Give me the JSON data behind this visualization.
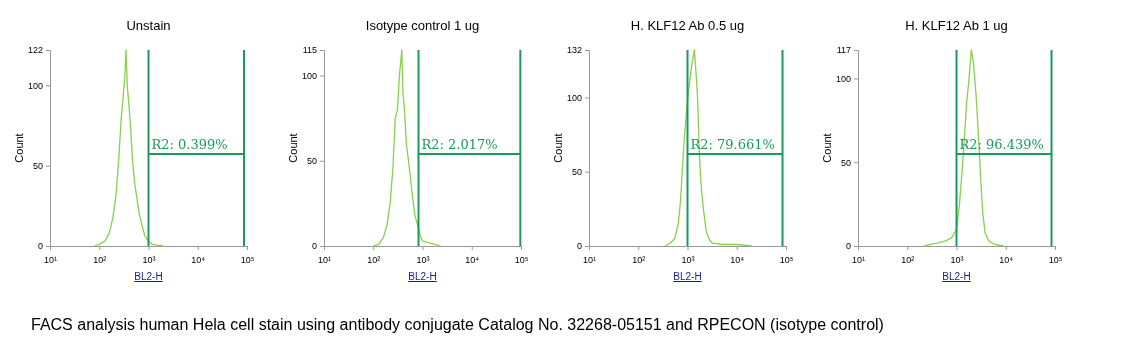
{
  "chart_data": [
    {
      "type": "line",
      "title": "Unstain",
      "xlabel": "BL2-H",
      "ylabel": "Count",
      "log": "x",
      "marker": "none",
      "line_style": "solid",
      "grid": false,
      "xlim": [
        10,
        100000
      ],
      "xticks": [
        {
          "value": 10,
          "label": "10¹"
        },
        {
          "value": 100,
          "label": "10²"
        },
        {
          "value": 1000,
          "label": "10³"
        },
        {
          "value": 10000,
          "label": "10⁴"
        },
        {
          "value": 100000,
          "label": "10⁵"
        }
      ],
      "ylim": [
        0,
        122
      ],
      "yticks": [
        0,
        50,
        100,
        122
      ],
      "series": [
        {
          "color": "#8ccf4d",
          "x": [
            80,
            100,
            130,
            160,
            190,
            220,
            250,
            280,
            300,
            330,
            350,
            370,
            400,
            430,
            470,
            520,
            580,
            650,
            750,
            850,
            1000,
            1200,
            1500,
            2000
          ],
          "values": [
            0,
            1,
            3,
            8,
            18,
            32,
            55,
            80,
            90,
            105,
            122,
            100,
            88,
            75,
            55,
            40,
            30,
            20,
            12,
            6,
            3,
            1,
            0.5,
            0
          ]
        }
      ],
      "ref_lines": [
        {
          "axis": "x",
          "value": 1000,
          "color": "#1a9a5a"
        },
        {
          "axis": "x",
          "value": 87000,
          "color": "#1a9a5a"
        }
      ],
      "annotations": [
        "R2: 0.399%",
        "FACS analysis human Hela cell stain using antibody conjugate Catalog No. 32268-05151 and RPECON (isotype control)"
      ]
    },
    {
      "type": "line",
      "title": "Isotype control 1 ug",
      "xlabel": "BL2-H",
      "ylabel": "Count",
      "log": "x",
      "marker": "none",
      "line_style": "solid",
      "grid": false,
      "xlim": [
        10,
        100000
      ],
      "xticks": [
        {
          "value": 10,
          "label": "10¹"
        },
        {
          "value": 100,
          "label": "10²"
        },
        {
          "value": 1000,
          "label": "10³"
        },
        {
          "value": 10000,
          "label": "10⁴"
        },
        {
          "value": 100000,
          "label": "10⁵"
        }
      ],
      "ylim": [
        0,
        115
      ],
      "yticks": [
        0,
        50,
        100,
        115
      ],
      "series": [
        {
          "color": "#8ccf4d",
          "x": [
            100,
            130,
            160,
            190,
            220,
            250,
            280,
            310,
            340,
            380,
            400,
            430,
            470,
            520,
            560,
            620,
            700,
            800,
            900,
            1000,
            1300,
            1800,
            2300
          ],
          "values": [
            0,
            1,
            5,
            12,
            25,
            45,
            75,
            80,
            100,
            115,
            90,
            80,
            60,
            50,
            42,
            30,
            18,
            12,
            6,
            3,
            2,
            1,
            0
          ]
        }
      ],
      "ref_lines": [
        {
          "axis": "x",
          "value": 830,
          "color": "#1a9a5a"
        },
        {
          "axis": "x",
          "value": 97000,
          "color": "#1a9a5a"
        }
      ],
      "annotations": [
        "R2: 2.017%"
      ]
    },
    {
      "type": "line",
      "title": "H. KLF12 Ab 0.5 ug",
      "xlabel": "BL2-H",
      "ylabel": "Count",
      "log": "x",
      "marker": "none",
      "line_style": "solid",
      "grid": false,
      "xlim": [
        10,
        100000
      ],
      "xticks": [
        {
          "value": 10,
          "label": "10¹"
        },
        {
          "value": 100,
          "label": "10²"
        },
        {
          "value": 1000,
          "label": "10³"
        },
        {
          "value": 10000,
          "label": "10⁴"
        },
        {
          "value": 100000,
          "label": "10⁵"
        }
      ],
      "ylim": [
        0,
        132
      ],
      "yticks": [
        0,
        50,
        100,
        132
      ],
      "series": [
        {
          "color": "#8ccf4d",
          "x": [
            350,
            450,
            550,
            650,
            720,
            780,
            850,
            950,
            1050,
            1200,
            1380,
            1500,
            1600,
            1750,
            1900,
            2100,
            2400,
            2800,
            3200,
            5000,
            10000,
            20000
          ],
          "values": [
            0,
            2,
            5,
            15,
            30,
            50,
            70,
            90,
            105,
            120,
            132,
            115,
            100,
            60,
            40,
            25,
            10,
            4,
            2,
            1,
            1,
            0
          ]
        }
      ],
      "ref_lines": [
        {
          "axis": "x",
          "value": 1000,
          "color": "#1a9a5a"
        },
        {
          "axis": "x",
          "value": 85000,
          "color": "#1a9a5a"
        }
      ],
      "annotations": [
        "R2: 79.661%"
      ]
    },
    {
      "type": "line",
      "title": "H. KLF12 Ab 1 ug",
      "xlabel": "BL2-H",
      "ylabel": "Count",
      "log": "x",
      "marker": "none",
      "line_style": "solid",
      "grid": false,
      "xlim": [
        10,
        100000
      ],
      "xticks": [
        {
          "value": 10,
          "label": "10¹"
        },
        {
          "value": 100,
          "label": "10²"
        },
        {
          "value": 1000,
          "label": "10³"
        },
        {
          "value": 10000,
          "label": "10⁴"
        },
        {
          "value": 100000,
          "label": "10⁵"
        }
      ],
      "ylim": [
        0,
        117
      ],
      "yticks": [
        0,
        50,
        100,
        117
      ],
      "series": [
        {
          "color": "#8ccf4d",
          "x": [
            220,
            300,
            450,
            600,
            800,
            1000,
            1150,
            1300,
            1450,
            1600,
            1800,
            2000,
            2200,
            2500,
            2800,
            3100,
            3400,
            3800,
            4500,
            6000,
            9000
          ],
          "values": [
            0,
            1,
            2,
            3,
            5,
            10,
            25,
            45,
            65,
            85,
            100,
            117,
            110,
            90,
            65,
            40,
            20,
            8,
            3,
            1,
            0
          ]
        }
      ],
      "ref_lines": [
        {
          "axis": "x",
          "value": 1000,
          "color": "#1a9a5a"
        },
        {
          "axis": "x",
          "value": 85000,
          "color": "#1a9a5a"
        }
      ],
      "annotations": [
        "R2: 96.439%"
      ]
    }
  ]
}
